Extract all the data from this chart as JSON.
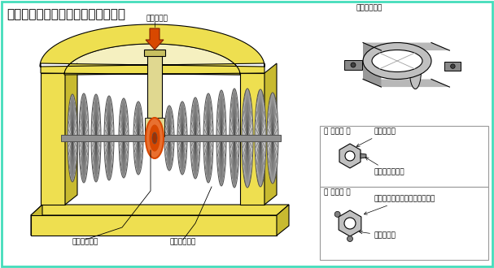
{
  "title": "低圧タービン蒸気転向装置　概略図",
  "bg_color": "#ffffff",
  "border_color": "#44ddbb",
  "main_label_steam_flow": "蒸気の流れ",
  "main_label_device": "蒸気転向装置",
  "main_label_turbine": "低圧タービン",
  "top_right_label": "蒸気転向装置",
  "before_label": "〈 対策前 〉",
  "after_label": "〈 対策後 〉",
  "before_bolt": "固定ボルト",
  "before_pin": "廻り止め割ピン",
  "after_weld": "固り止めスポット溶接（２点）",
  "after_nut": "固定ナット",
  "yellow": "#eedf50",
  "yellow_dark": "#c8ba30",
  "yellow_inner": "#f5f0c0",
  "gray": "#909090",
  "gray_light": "#c0c0c0",
  "gray_dark": "#505050",
  "gray_med": "#a0a0a0",
  "orange": "#d84800",
  "orange_light": "#e87030"
}
